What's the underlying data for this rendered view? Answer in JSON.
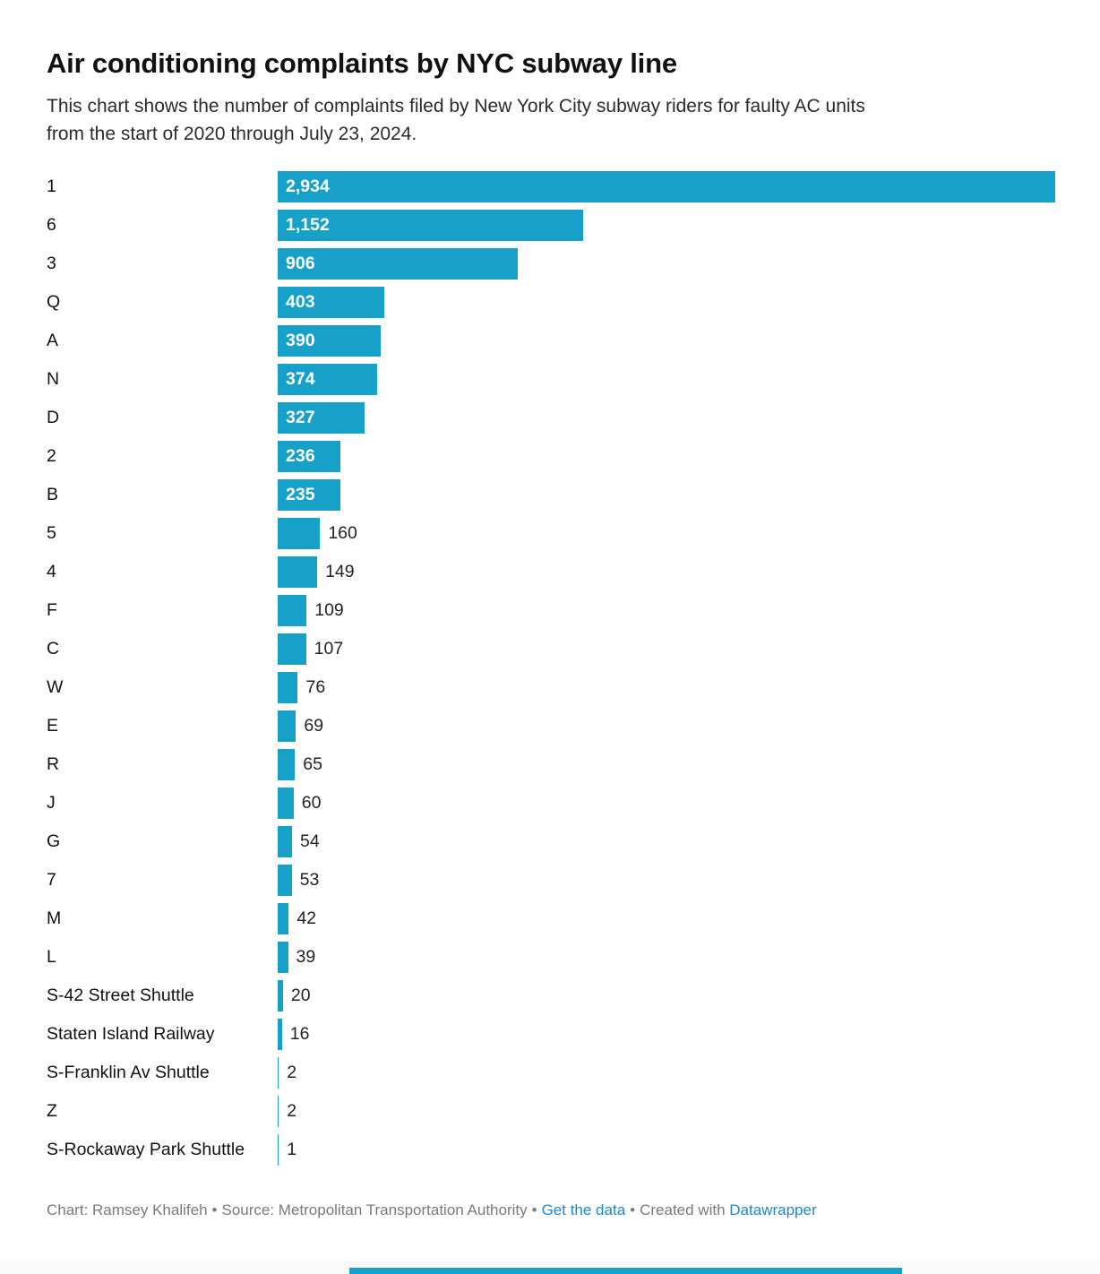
{
  "header": {
    "title": "Air conditioning complaints by NYC subway line",
    "description_line1": "This chart shows the number of complaints filed by New York City subway riders for faulty AC units",
    "description_line2": "from the start of 2020 through July 23, 2024."
  },
  "chart_data": {
    "type": "bar",
    "orientation": "horizontal",
    "title": "Air conditioning complaints by NYC subway line",
    "categories": [
      "1",
      "6",
      "3",
      "Q",
      "A",
      "N",
      "D",
      "2",
      "B",
      "5",
      "4",
      "F",
      "C",
      "W",
      "E",
      "R",
      "J",
      "G",
      "7",
      "M",
      "L",
      "S-42 Street Shuttle",
      "Staten Island Railway",
      "S-Franklin Av Shuttle",
      "Z",
      "S-Rockaway Park Shuttle"
    ],
    "values": [
      2934,
      1152,
      906,
      403,
      390,
      374,
      327,
      236,
      235,
      160,
      149,
      109,
      107,
      76,
      69,
      65,
      60,
      54,
      53,
      42,
      39,
      20,
      16,
      2,
      2,
      1
    ],
    "value_labels": [
      "2,934",
      "1,152",
      "906",
      "403",
      "390",
      "374",
      "327",
      "236",
      "235",
      "160",
      "149",
      "109",
      "107",
      "76",
      "69",
      "65",
      "60",
      "54",
      "53",
      "42",
      "39",
      "20",
      "16",
      "2",
      "2",
      "1"
    ],
    "xlim": [
      0,
      2934
    ],
    "grid": false,
    "legend": "none",
    "bar_color": "#17a1c9",
    "inside_label_min_value": 235,
    "inside_label_color": "#ffffff",
    "outside_label_color": "#222222"
  },
  "footer": {
    "credit": "Chart: Ramsey Khalifeh",
    "sep": "•",
    "source": "Source: Metropolitan Transportation Authority",
    "get_data_label": "Get the data",
    "created_with": "Created with",
    "tool_name": "Datawrapper",
    "link_color": "#1d87cb"
  }
}
